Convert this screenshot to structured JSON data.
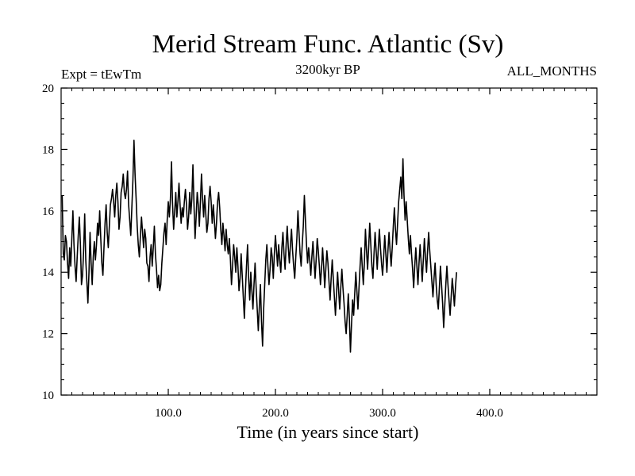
{
  "chart_data": {
    "type": "line",
    "title": "Merid Stream Func. Atlantic (Sv)",
    "subtitle_left": "Expt = tEwTm",
    "subtitle_center": "3200kyr BP",
    "subtitle_right": "ALL_MONTHS",
    "xlabel": "Time (in years since start)",
    "ylabel": "",
    "xlim": [
      0,
      500
    ],
    "ylim": [
      10,
      20
    ],
    "x_ticks": [
      100,
      200,
      300,
      400
    ],
    "x_tick_labels": [
      "100.0",
      "200.0",
      "300.0",
      "400.0"
    ],
    "y_ticks": [
      10,
      12,
      14,
      16,
      18,
      20
    ],
    "y_tick_labels": [
      "10",
      "12",
      "14",
      "16",
      "18",
      "20"
    ],
    "series": [
      {
        "name": "Merid Stream Func. Atlantic",
        "x_start": 1,
        "x_step": 1,
        "values": [
          16.5,
          14.6,
          14.4,
          15.2,
          15.0,
          14.3,
          13.8,
          14.8,
          14.2,
          15.1,
          16.0,
          14.9,
          14.2,
          13.7,
          14.5,
          15.2,
          15.8,
          14.9,
          13.6,
          13.9,
          14.7,
          15.9,
          14.4,
          13.7,
          13.0,
          14.0,
          15.3,
          14.3,
          13.6,
          14.5,
          15.0,
          14.4,
          14.9,
          15.6,
          15.2,
          16.0,
          15.1,
          14.3,
          13.9,
          14.8,
          15.6,
          16.2,
          15.3,
          14.8,
          15.5,
          16.2,
          16.4,
          16.7,
          16.3,
          15.8,
          16.5,
          16.9,
          16.3,
          15.4,
          15.8,
          16.6,
          16.8,
          17.2,
          16.6,
          16.4,
          16.7,
          17.3,
          16.2,
          15.7,
          15.2,
          16.1,
          17.0,
          18.3,
          17.2,
          16.4,
          15.5,
          14.9,
          14.5,
          15.2,
          15.8,
          15.3,
          14.8,
          15.4,
          15.1,
          14.3,
          14.2,
          13.7,
          14.5,
          14.9,
          14.2,
          14.8,
          15.5,
          14.6,
          14.1,
          13.5,
          13.9,
          13.4,
          13.6,
          14.3,
          14.8,
          15.3,
          15.6,
          14.9,
          15.7,
          16.3,
          15.8,
          16.4,
          17.6,
          16.2,
          15.4,
          16.0,
          16.6,
          15.8,
          16.3,
          16.9,
          16.2,
          15.6,
          16.1,
          15.8,
          16.3,
          16.7,
          16.2,
          15.4,
          15.8,
          16.6,
          15.9,
          16.4,
          17.5,
          16.2,
          15.1,
          15.8,
          16.6,
          16.2,
          15.5,
          16.3,
          17.2,
          16.4,
          15.8,
          16.5,
          15.9,
          15.3,
          15.6,
          16.4,
          16.8,
          16.3,
          15.6,
          16.2,
          15.7,
          15.1,
          15.6,
          16.3,
          16.6,
          16.1,
          15.4,
          14.9,
          15.6,
          15.2,
          14.7,
          15.4,
          14.9,
          14.6,
          15.1,
          14.4,
          13.6,
          14.2,
          14.9,
          14.5,
          14.0,
          14.8,
          14.2,
          13.4,
          13.8,
          14.6,
          13.9,
          13.2,
          12.5,
          13.4,
          14.2,
          14.9,
          13.8,
          13.1,
          14.0,
          13.4,
          12.8,
          13.6,
          14.3,
          13.5,
          12.8,
          12.1,
          12.9,
          13.6,
          12.4,
          11.6,
          12.8,
          13.6,
          14.4,
          14.9,
          14.2,
          13.6,
          14.1,
          14.8,
          14.5,
          13.8,
          14.6,
          15.2,
          14.7,
          14.2,
          14.9,
          14.4,
          14.0,
          14.8,
          15.3,
          14.6,
          14.1,
          14.9,
          15.5,
          14.8,
          14.3,
          14.9,
          15.4,
          14.7,
          14.2,
          13.8,
          14.5,
          15.1,
          16.0,
          15.3,
          14.6,
          14.2,
          14.9,
          15.5,
          16.5,
          15.7,
          14.9,
          14.3,
          14.8,
          14.4,
          13.9,
          14.5,
          15.0,
          14.4,
          13.8,
          14.4,
          15.1,
          14.7,
          14.2,
          13.6,
          14.1,
          14.8,
          14.2,
          13.5,
          14.1,
          14.7,
          14.3,
          13.7,
          13.1,
          13.8,
          14.4,
          13.8,
          13.2,
          12.6,
          13.3,
          14.0,
          13.4,
          12.8,
          13.5,
          14.1,
          13.5,
          13.0,
          12.4,
          12.0,
          12.6,
          13.3,
          12.5,
          11.4,
          12.3,
          13.1,
          12.6,
          13.3,
          14.0,
          13.4,
          12.8,
          13.5,
          14.2,
          14.8,
          14.2,
          13.6,
          14.3,
          15.4,
          14.7,
          14.1,
          14.8,
          15.6,
          14.9,
          14.2,
          13.8,
          14.6,
          15.3,
          14.7,
          14.1,
          14.8,
          15.4,
          14.8,
          14.3,
          13.9,
          14.5,
          15.2,
          14.6,
          14.0,
          14.7,
          15.3,
          14.7,
          14.2,
          14.8,
          15.5,
          16.1,
          15.4,
          14.9,
          15.6,
          16.3,
          16.7,
          17.1,
          16.4,
          17.7,
          16.5,
          15.7,
          16.3,
          15.7,
          15.1,
          14.6,
          15.2,
          14.6,
          14.1,
          13.5,
          14.2,
          14.8,
          14.2,
          13.6,
          14.3,
          14.9,
          14.3,
          13.7,
          14.4,
          15.1,
          14.5,
          14.0,
          14.7,
          15.3,
          14.7,
          14.2,
          13.7,
          13.2,
          13.8,
          14.3,
          13.6,
          13.1,
          12.8,
          13.5,
          14.2,
          13.6,
          13.0,
          12.2,
          12.9,
          13.6,
          14.2,
          13.6,
          13.1,
          12.6,
          13.2,
          13.8,
          13.4,
          12.9,
          13.5,
          14.0
        ]
      }
    ]
  }
}
